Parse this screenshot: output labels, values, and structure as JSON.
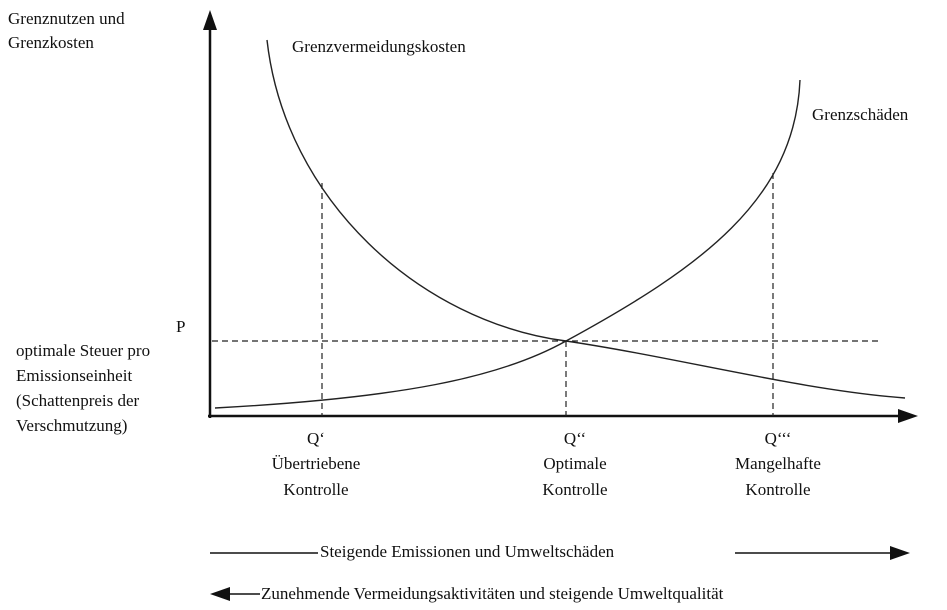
{
  "y_axis_label": [
    "Grenznutzen und",
    "Grenzkosten"
  ],
  "curves": [
    {
      "label": "Grenzvermeidungskosten"
    },
    {
      "label": "Grenzschäden"
    }
  ],
  "price_label": "P",
  "price_description": [
    "optimale Steuer pro",
    "Emissionseinheit",
    "(Schattenpreis der",
    "Verschmutzung)"
  ],
  "quantities": [
    {
      "label": "Q‘",
      "description": [
        "Übertriebene",
        "Kontrolle"
      ]
    },
    {
      "label": "Q‘‘",
      "description": [
        "Optimale",
        "Kontrolle"
      ]
    },
    {
      "label": "Q‘‘‘",
      "description": [
        "Mangelhafte",
        "Kontrolle"
      ]
    }
  ],
  "arrows": [
    "Steigende Emissionen und Umweltschäden",
    "Zunehmende Vermeidungsaktivitäten und steigende Umweltqualität"
  ]
}
